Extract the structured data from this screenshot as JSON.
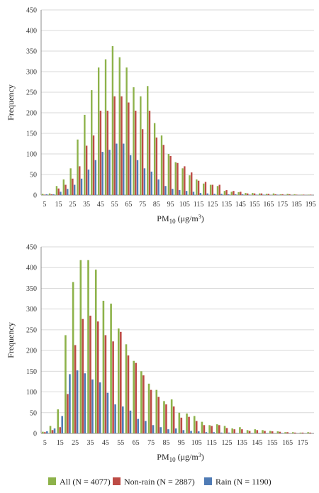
{
  "legend": [
    {
      "key": "all",
      "label": "All (N = 4077)",
      "color": "#8db24a"
    },
    {
      "key": "nonrain",
      "label": "Non-rain (N = 2887)",
      "color": "#bd4b45"
    },
    {
      "key": "rain",
      "label": "Rain (N = 1190)",
      "color": "#4f7bb5"
    }
  ],
  "chart_data": [
    {
      "type": "bar",
      "ylabel": "Frequency",
      "xlabel_main": "PM",
      "xlabel_sub": "10",
      "xlabel_unit": " (μg/m",
      "xlabel_sup": "3",
      "xlabel_close": ")",
      "ylim": [
        0,
        450
      ],
      "yticks": [
        "0",
        "50",
        "100",
        "150",
        "200",
        "250",
        "300",
        "350",
        "400",
        "450"
      ],
      "categories": [
        5,
        10,
        15,
        20,
        25,
        30,
        35,
        40,
        45,
        50,
        55,
        60,
        65,
        70,
        75,
        80,
        85,
        90,
        95,
        100,
        105,
        110,
        115,
        120,
        125,
        130,
        135,
        140,
        145,
        150,
        155,
        160,
        165,
        170,
        175,
        180,
        185,
        190,
        195
      ],
      "xticks": [
        "5",
        "15",
        "25",
        "35",
        "45",
        "55",
        "65",
        "75",
        "85",
        "95",
        "105",
        "115",
        "125",
        "135",
        "145",
        "155",
        "165",
        "175",
        "185",
        "195"
      ],
      "series": [
        {
          "name": "all",
          "values": [
            3,
            4,
            22,
            38,
            65,
            135,
            195,
            255,
            310,
            330,
            362,
            335,
            310,
            262,
            240,
            265,
            175,
            145,
            100,
            80,
            65,
            48,
            38,
            28,
            25,
            22,
            10,
            8,
            7,
            5,
            5,
            4,
            3,
            4,
            2,
            3,
            2,
            1,
            1
          ]
        },
        {
          "name": "nonrain",
          "values": [
            1,
            2,
            16,
            25,
            40,
            70,
            120,
            145,
            205,
            205,
            240,
            240,
            225,
            205,
            160,
            205,
            140,
            122,
            95,
            78,
            70,
            55,
            35,
            32,
            25,
            25,
            12,
            10,
            8,
            4,
            4,
            4,
            3,
            2,
            2,
            2,
            1,
            1,
            1
          ]
        },
        {
          "name": "rain",
          "values": [
            2,
            2,
            8,
            15,
            25,
            40,
            62,
            85,
            105,
            110,
            125,
            125,
            97,
            85,
            65,
            57,
            38,
            22,
            15,
            12,
            10,
            8,
            5,
            4,
            3,
            3,
            2,
            2,
            2,
            1,
            1,
            1,
            0,
            1,
            0,
            0,
            0,
            0,
            0
          ]
        }
      ]
    },
    {
      "type": "bar",
      "ylabel": "Frequency",
      "xlabel_main": "PM",
      "xlabel_sub": "10",
      "xlabel_unit": " (μg/m",
      "xlabel_sup": "3",
      "xlabel_close": ")",
      "ylim": [
        0,
        450
      ],
      "yticks": [
        "0",
        "50",
        "100",
        "150",
        "200",
        "250",
        "300",
        "350",
        "400",
        "450"
      ],
      "categories": [
        5,
        10,
        15,
        20,
        25,
        30,
        35,
        40,
        45,
        50,
        55,
        60,
        65,
        70,
        75,
        80,
        85,
        90,
        95,
        100,
        105,
        110,
        115,
        120,
        125,
        130,
        135,
        140,
        145,
        150,
        155,
        160,
        165,
        170,
        175,
        180
      ],
      "xticks": [
        "5",
        "15",
        "25",
        "35",
        "45",
        "55",
        "65",
        "75",
        "85",
        "95",
        "105",
        "115",
        "125",
        "135",
        "145",
        "155",
        "165",
        "175"
      ],
      "series": [
        {
          "name": "all",
          "values": [
            4,
            18,
            58,
            237,
            365,
            418,
            418,
            395,
            320,
            313,
            253,
            215,
            175,
            150,
            120,
            105,
            78,
            82,
            50,
            48,
            42,
            28,
            20,
            22,
            18,
            12,
            15,
            8,
            10,
            8,
            6,
            5,
            3,
            3,
            2,
            3
          ]
        },
        {
          "name": "nonrain",
          "values": [
            3,
            8,
            15,
            95,
            213,
            276,
            284,
            270,
            237,
            222,
            245,
            188,
            170,
            140,
            105,
            88,
            70,
            65,
            38,
            40,
            30,
            20,
            18,
            20,
            13,
            10,
            10,
            6,
            8,
            6,
            5,
            4,
            3,
            2,
            2,
            2
          ]
        },
        {
          "name": "rain",
          "values": [
            5,
            12,
            42,
            143,
            152,
            145,
            130,
            123,
            98,
            70,
            65,
            55,
            35,
            30,
            20,
            15,
            10,
            12,
            8,
            6,
            5,
            3,
            3,
            2,
            2,
            1,
            1,
            1,
            1,
            1,
            0,
            1,
            0,
            0,
            0,
            0
          ]
        }
      ]
    }
  ]
}
